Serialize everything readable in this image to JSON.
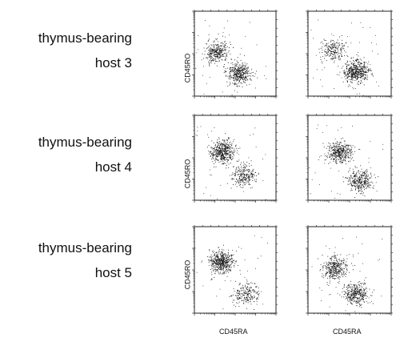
{
  "rows": [
    {
      "line1": "thymus-bearing",
      "line2": "host 3"
    },
    {
      "line1": "thymus-bearing",
      "line2": "host 4"
    },
    {
      "line1": "thymus-bearing",
      "line2": "host 5"
    }
  ],
  "axis_labels": {
    "y": "CD45RO",
    "x": "CD45RA"
  },
  "chart_data": [
    {
      "type": "scatter",
      "row": "host 3",
      "column": 1,
      "xlabel": "",
      "ylabel": "CD45RO",
      "clusters": [
        {
          "x": 12,
          "y": 120,
          "weight": 0.45
        },
        {
          "x": 150,
          "y": 12,
          "weight": 0.55
        }
      ],
      "x_scale": "log",
      "y_scale": "log",
      "xlim": [
        1,
        10000
      ],
      "ylim": [
        1,
        10000
      ]
    },
    {
      "type": "scatter",
      "row": "host 3",
      "column": 2,
      "xlabel": "",
      "ylabel": "",
      "clusters": [
        {
          "x": 15,
          "y": 150,
          "weight": 0.3
        },
        {
          "x": 200,
          "y": 15,
          "weight": 0.7
        }
      ],
      "x_scale": "log",
      "y_scale": "log",
      "xlim": [
        1,
        10000
      ],
      "ylim": [
        1,
        10000
      ]
    },
    {
      "type": "scatter",
      "row": "host 4",
      "column": 1,
      "xlabel": "",
      "ylabel": "CD45RO",
      "clusters": [
        {
          "x": 25,
          "y": 200,
          "weight": 0.65
        },
        {
          "x": 250,
          "y": 15,
          "weight": 0.35
        }
      ],
      "x_scale": "log",
      "y_scale": "log",
      "xlim": [
        1,
        10000
      ],
      "ylim": [
        1,
        10000
      ]
    },
    {
      "type": "scatter",
      "row": "host 4",
      "column": 2,
      "xlabel": "",
      "ylabel": "",
      "clusters": [
        {
          "x": 30,
          "y": 180,
          "weight": 0.55
        },
        {
          "x": 300,
          "y": 8,
          "weight": 0.45
        }
      ],
      "x_scale": "log",
      "y_scale": "log",
      "xlim": [
        1,
        10000
      ],
      "ylim": [
        1,
        10000
      ]
    },
    {
      "type": "scatter",
      "row": "host 5",
      "column": 1,
      "xlabel": "CD45RA",
      "ylabel": "CD45RO",
      "clusters": [
        {
          "x": 20,
          "y": 250,
          "weight": 0.7
        },
        {
          "x": 300,
          "y": 8,
          "weight": 0.3
        }
      ],
      "x_scale": "log",
      "y_scale": "log",
      "xlim": [
        1,
        10000
      ],
      "ylim": [
        1,
        10000
      ]
    },
    {
      "type": "scatter",
      "row": "host 5",
      "column": 2,
      "xlabel": "CD45RA",
      "ylabel": "",
      "clusters": [
        {
          "x": 20,
          "y": 120,
          "weight": 0.5
        },
        {
          "x": 200,
          "y": 8,
          "weight": 0.5
        }
      ],
      "x_scale": "log",
      "y_scale": "log",
      "xlim": [
        1,
        10000
      ],
      "ylim": [
        1,
        10000
      ]
    }
  ]
}
